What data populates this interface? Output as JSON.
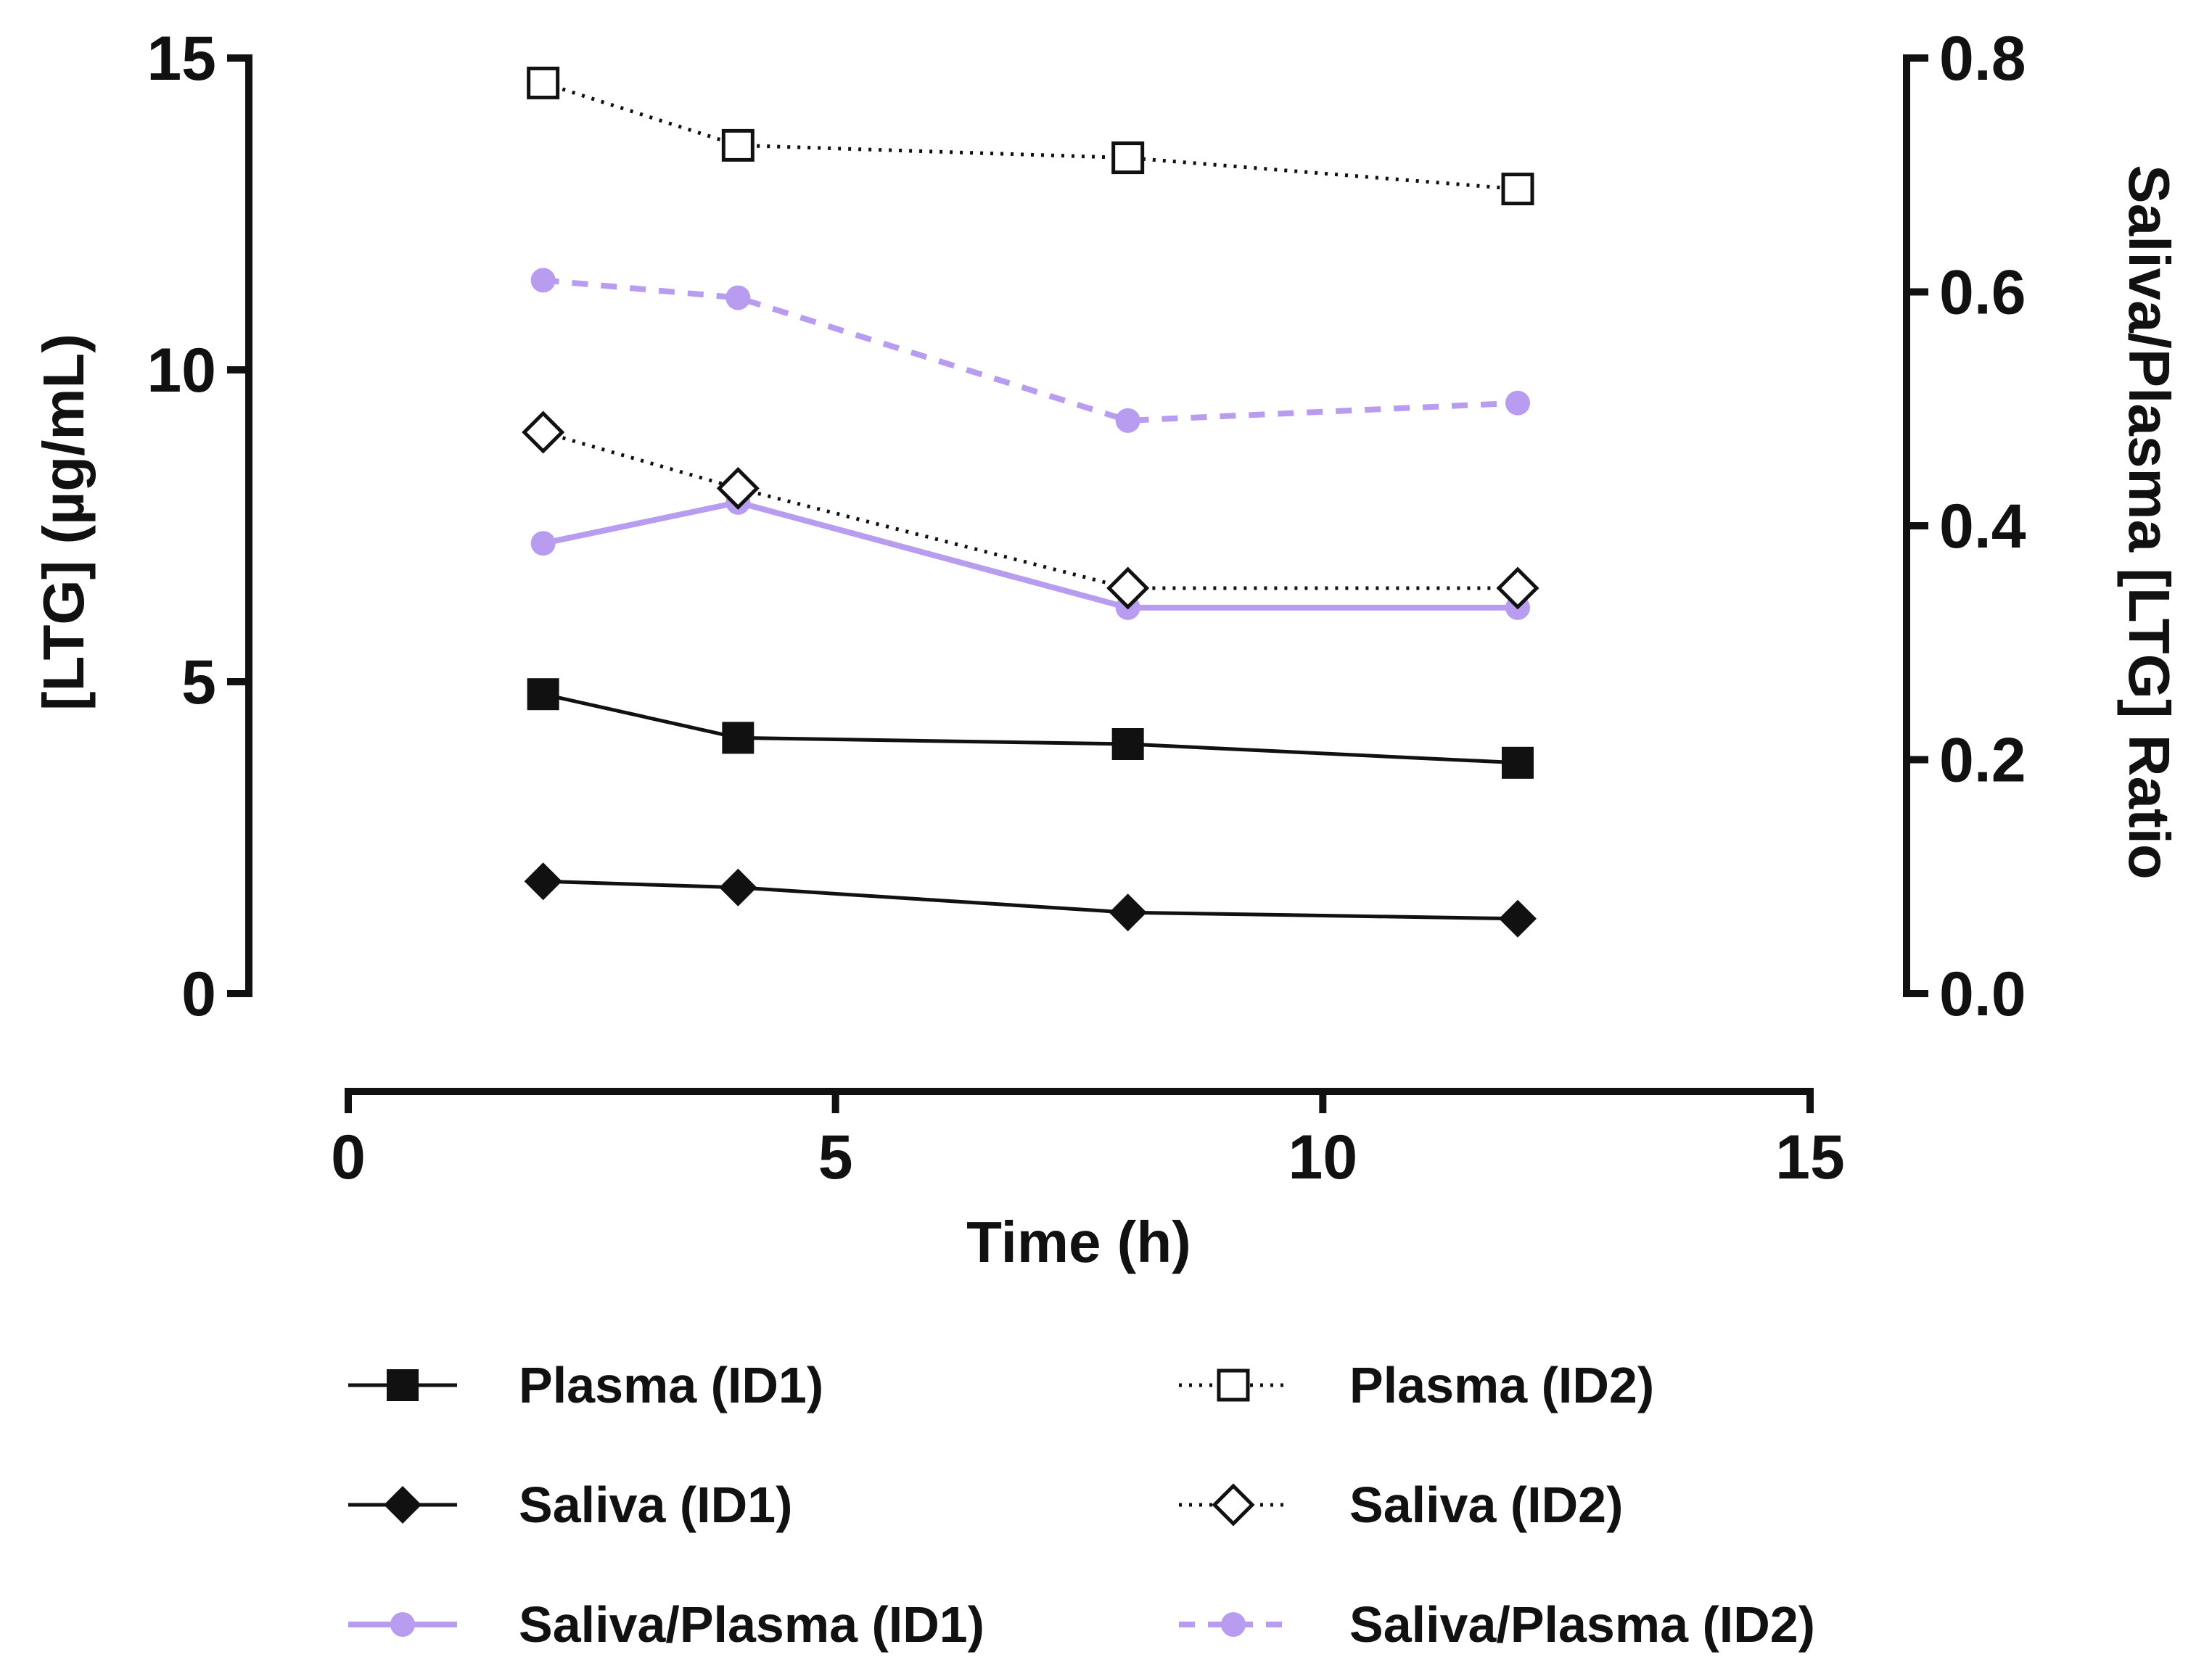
{
  "chart_data": {
    "type": "line",
    "title": "",
    "xlabel": "Time (h)",
    "ylabel": "[LTG] (µg/mL)",
    "y2label": "Saliva/Plasma [LTG] Ratio",
    "xlim": [
      0,
      15
    ],
    "ylim": [
      0,
      15
    ],
    "y2lim": [
      0,
      0.8
    ],
    "xticks": [
      "0",
      "5",
      "10",
      "15"
    ],
    "yticks": [
      "0",
      "5",
      "10",
      "15"
    ],
    "y2ticks": [
      "0.0",
      "0.2",
      "0.4",
      "0.6",
      "0.8"
    ],
    "grid": false,
    "legend_position": "bottom",
    "x": [
      2,
      4,
      8,
      12
    ],
    "series": [
      {
        "key": "plasma_id1",
        "name": "Plasma (ID1)",
        "axis": "left",
        "values": [
          4.8,
          4.1,
          4.0,
          3.7
        ],
        "color": "#111111",
        "marker": "square-filled",
        "line": "solid"
      },
      {
        "key": "saliva_id1",
        "name": "Saliva (ID1)",
        "axis": "left",
        "values": [
          1.8,
          1.7,
          1.3,
          1.2
        ],
        "color": "#111111",
        "marker": "diamond-filled",
        "line": "solid"
      },
      {
        "key": "ratio_id1",
        "name": "Saliva/Plasma (ID1)",
        "axis": "right",
        "values": [
          0.385,
          0.42,
          0.33,
          0.33
        ],
        "color": "#b79cf0",
        "marker": "circle-filled",
        "line": "solid"
      },
      {
        "key": "plasma_id2",
        "name": "Plasma (ID2)",
        "axis": "left",
        "values": [
          14.6,
          13.6,
          13.4,
          12.9
        ],
        "color": "#111111",
        "marker": "square-open",
        "line": "dotted"
      },
      {
        "key": "saliva_id2",
        "name": "Saliva (ID2)",
        "axis": "left",
        "values": [
          9.0,
          8.1,
          6.5,
          6.5
        ],
        "color": "#111111",
        "marker": "diamond-open",
        "line": "dotted"
      },
      {
        "key": "ratio_id2",
        "name": "Saliva/Plasma (ID2)",
        "axis": "right",
        "values": [
          0.61,
          0.595,
          0.49,
          0.505
        ],
        "color": "#b79cf0",
        "marker": "circle-filled",
        "line": "dashed"
      }
    ]
  }
}
